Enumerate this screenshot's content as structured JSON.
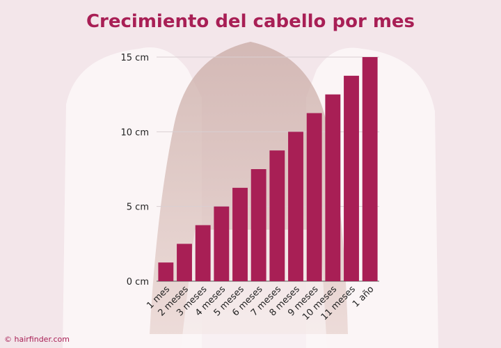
{
  "colors": {
    "bar": "#a81f55",
    "title": "#a81f55",
    "credit": "#a81f55",
    "text": "#222222",
    "grid": "#d9cfd2",
    "axis": "#555555"
  },
  "credit": "© hairfinder.com",
  "chart_data": {
    "type": "bar",
    "title": "Crecimiento del cabello por mes",
    "xlabel": "",
    "ylabel": "",
    "categories": [
      "1 mes",
      "2 meses",
      "3 meses",
      "4 meses",
      "5 meses",
      "6 meses",
      "7 meses",
      "8 meses",
      "9 meses",
      "10 meses",
      "11 meses",
      "1 año"
    ],
    "values": [
      1.25,
      2.5,
      3.75,
      5,
      6.25,
      7.5,
      8.75,
      10,
      11.25,
      12.5,
      13.75,
      15
    ],
    "ylim": [
      0,
      15
    ],
    "yticks": [
      0,
      5,
      10,
      15
    ],
    "ytick_labels": [
      "0 cm",
      "5 cm",
      "10 cm",
      "15 cm"
    ],
    "grid": true
  }
}
